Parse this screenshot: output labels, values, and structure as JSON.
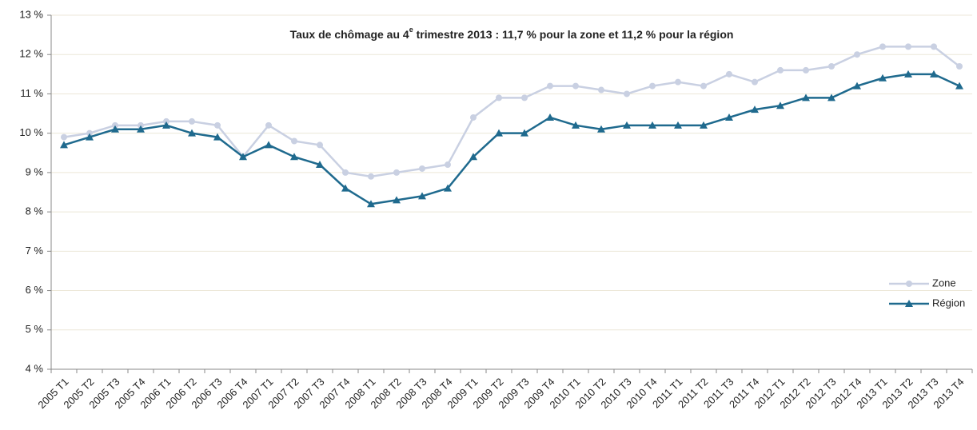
{
  "chart_data": {
    "type": "line",
    "title": [
      "Taux de chômage au 4",
      "e",
      " trimestre 2013 : 11,7 % pour la zone et 11,2 % pour la région"
    ],
    "categories": [
      "2005 T1",
      "2005 T2",
      "2005 T3",
      "2005 T4",
      "2006 T1",
      "2006 T2",
      "2006 T3",
      "2006 T4",
      "2007 T1",
      "2007 T2",
      "2007 T3",
      "2007 T4",
      "2008 T1",
      "2008 T2",
      "2008 T3",
      "2008 T4",
      "2009 T1",
      "2009 T2",
      "2009 T3",
      "2009 T4",
      "2010 T1",
      "2010 T2",
      "2010 T3",
      "2010 T4",
      "2011 T1",
      "2011 T2",
      "2011 T3",
      "2011 T4",
      "2012 T1",
      "2012 T2",
      "2012 T3",
      "2012 T4",
      "2013 T1",
      "2013 T2",
      "2013 T3",
      "2013 T4"
    ],
    "series": [
      {
        "name": "Zone",
        "color": "#c9d0e2",
        "marker": "circle",
        "values": [
          9.9,
          10.0,
          10.2,
          10.2,
          10.3,
          10.3,
          10.2,
          9.4,
          10.2,
          9.8,
          9.7,
          9.0,
          8.9,
          9.0,
          9.1,
          9.2,
          10.4,
          10.9,
          10.9,
          11.2,
          11.2,
          11.1,
          11.0,
          11.2,
          11.3,
          11.2,
          11.5,
          11.3,
          11.6,
          11.6,
          11.7,
          12.0,
          12.2,
          12.2,
          12.2,
          11.7
        ]
      },
      {
        "name": "Région",
        "color": "#1f6a8e",
        "marker": "triangle",
        "values": [
          9.7,
          9.9,
          10.1,
          10.1,
          10.2,
          10.0,
          9.9,
          9.4,
          9.7,
          9.4,
          9.2,
          8.6,
          8.2,
          8.3,
          8.4,
          8.6,
          9.4,
          10.0,
          10.0,
          10.4,
          10.2,
          10.1,
          10.2,
          10.2,
          10.2,
          10.2,
          10.4,
          10.6,
          10.7,
          10.9,
          10.9,
          11.2,
          11.4,
          11.5,
          11.5,
          11.2
        ]
      }
    ],
    "ylim": [
      4,
      13
    ],
    "yticks": [
      {
        "value": 4,
        "label": "4 %"
      },
      {
        "value": 5,
        "label": "5 %"
      },
      {
        "value": 6,
        "label": "6 %"
      },
      {
        "value": 7,
        "label": "7 %"
      },
      {
        "value": 8,
        "label": "8 %"
      },
      {
        "value": 9,
        "label": "9 %"
      },
      {
        "value": 10,
        "label": "10 %"
      },
      {
        "value": 11,
        "label": "11 %"
      },
      {
        "value": 12,
        "label": "12 %"
      },
      {
        "value": 13,
        "label": "13 %"
      }
    ],
    "grid": true,
    "legend": "right"
  }
}
